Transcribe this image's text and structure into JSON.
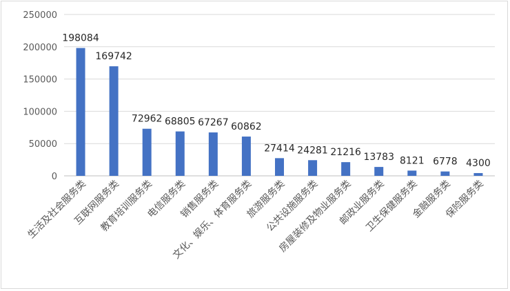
{
  "chart_data": {
    "type": "bar",
    "title": "",
    "xlabel": "",
    "ylabel": "",
    "ylim": [
      0,
      250000
    ],
    "yticks": [
      0,
      50000,
      100000,
      150000,
      200000,
      250000
    ],
    "grid": true,
    "legend": "none",
    "bar_color": "#4472c4",
    "categories": [
      "生活及社会服务类",
      "互联网服务类",
      "教育培训服务类",
      "电信服务类",
      "销售服务类",
      "文化、娱乐、体育服务类",
      "旅游服务类",
      "公共设施服务类",
      "房屋装修及物业服务类",
      "邮政业服务类",
      "卫生保健服务类",
      "金融服务类",
      "保险服务类"
    ],
    "values": [
      198084,
      169742,
      72962,
      68805,
      67267,
      60862,
      27414,
      24281,
      21216,
      13783,
      8121,
      6778,
      4300
    ]
  }
}
